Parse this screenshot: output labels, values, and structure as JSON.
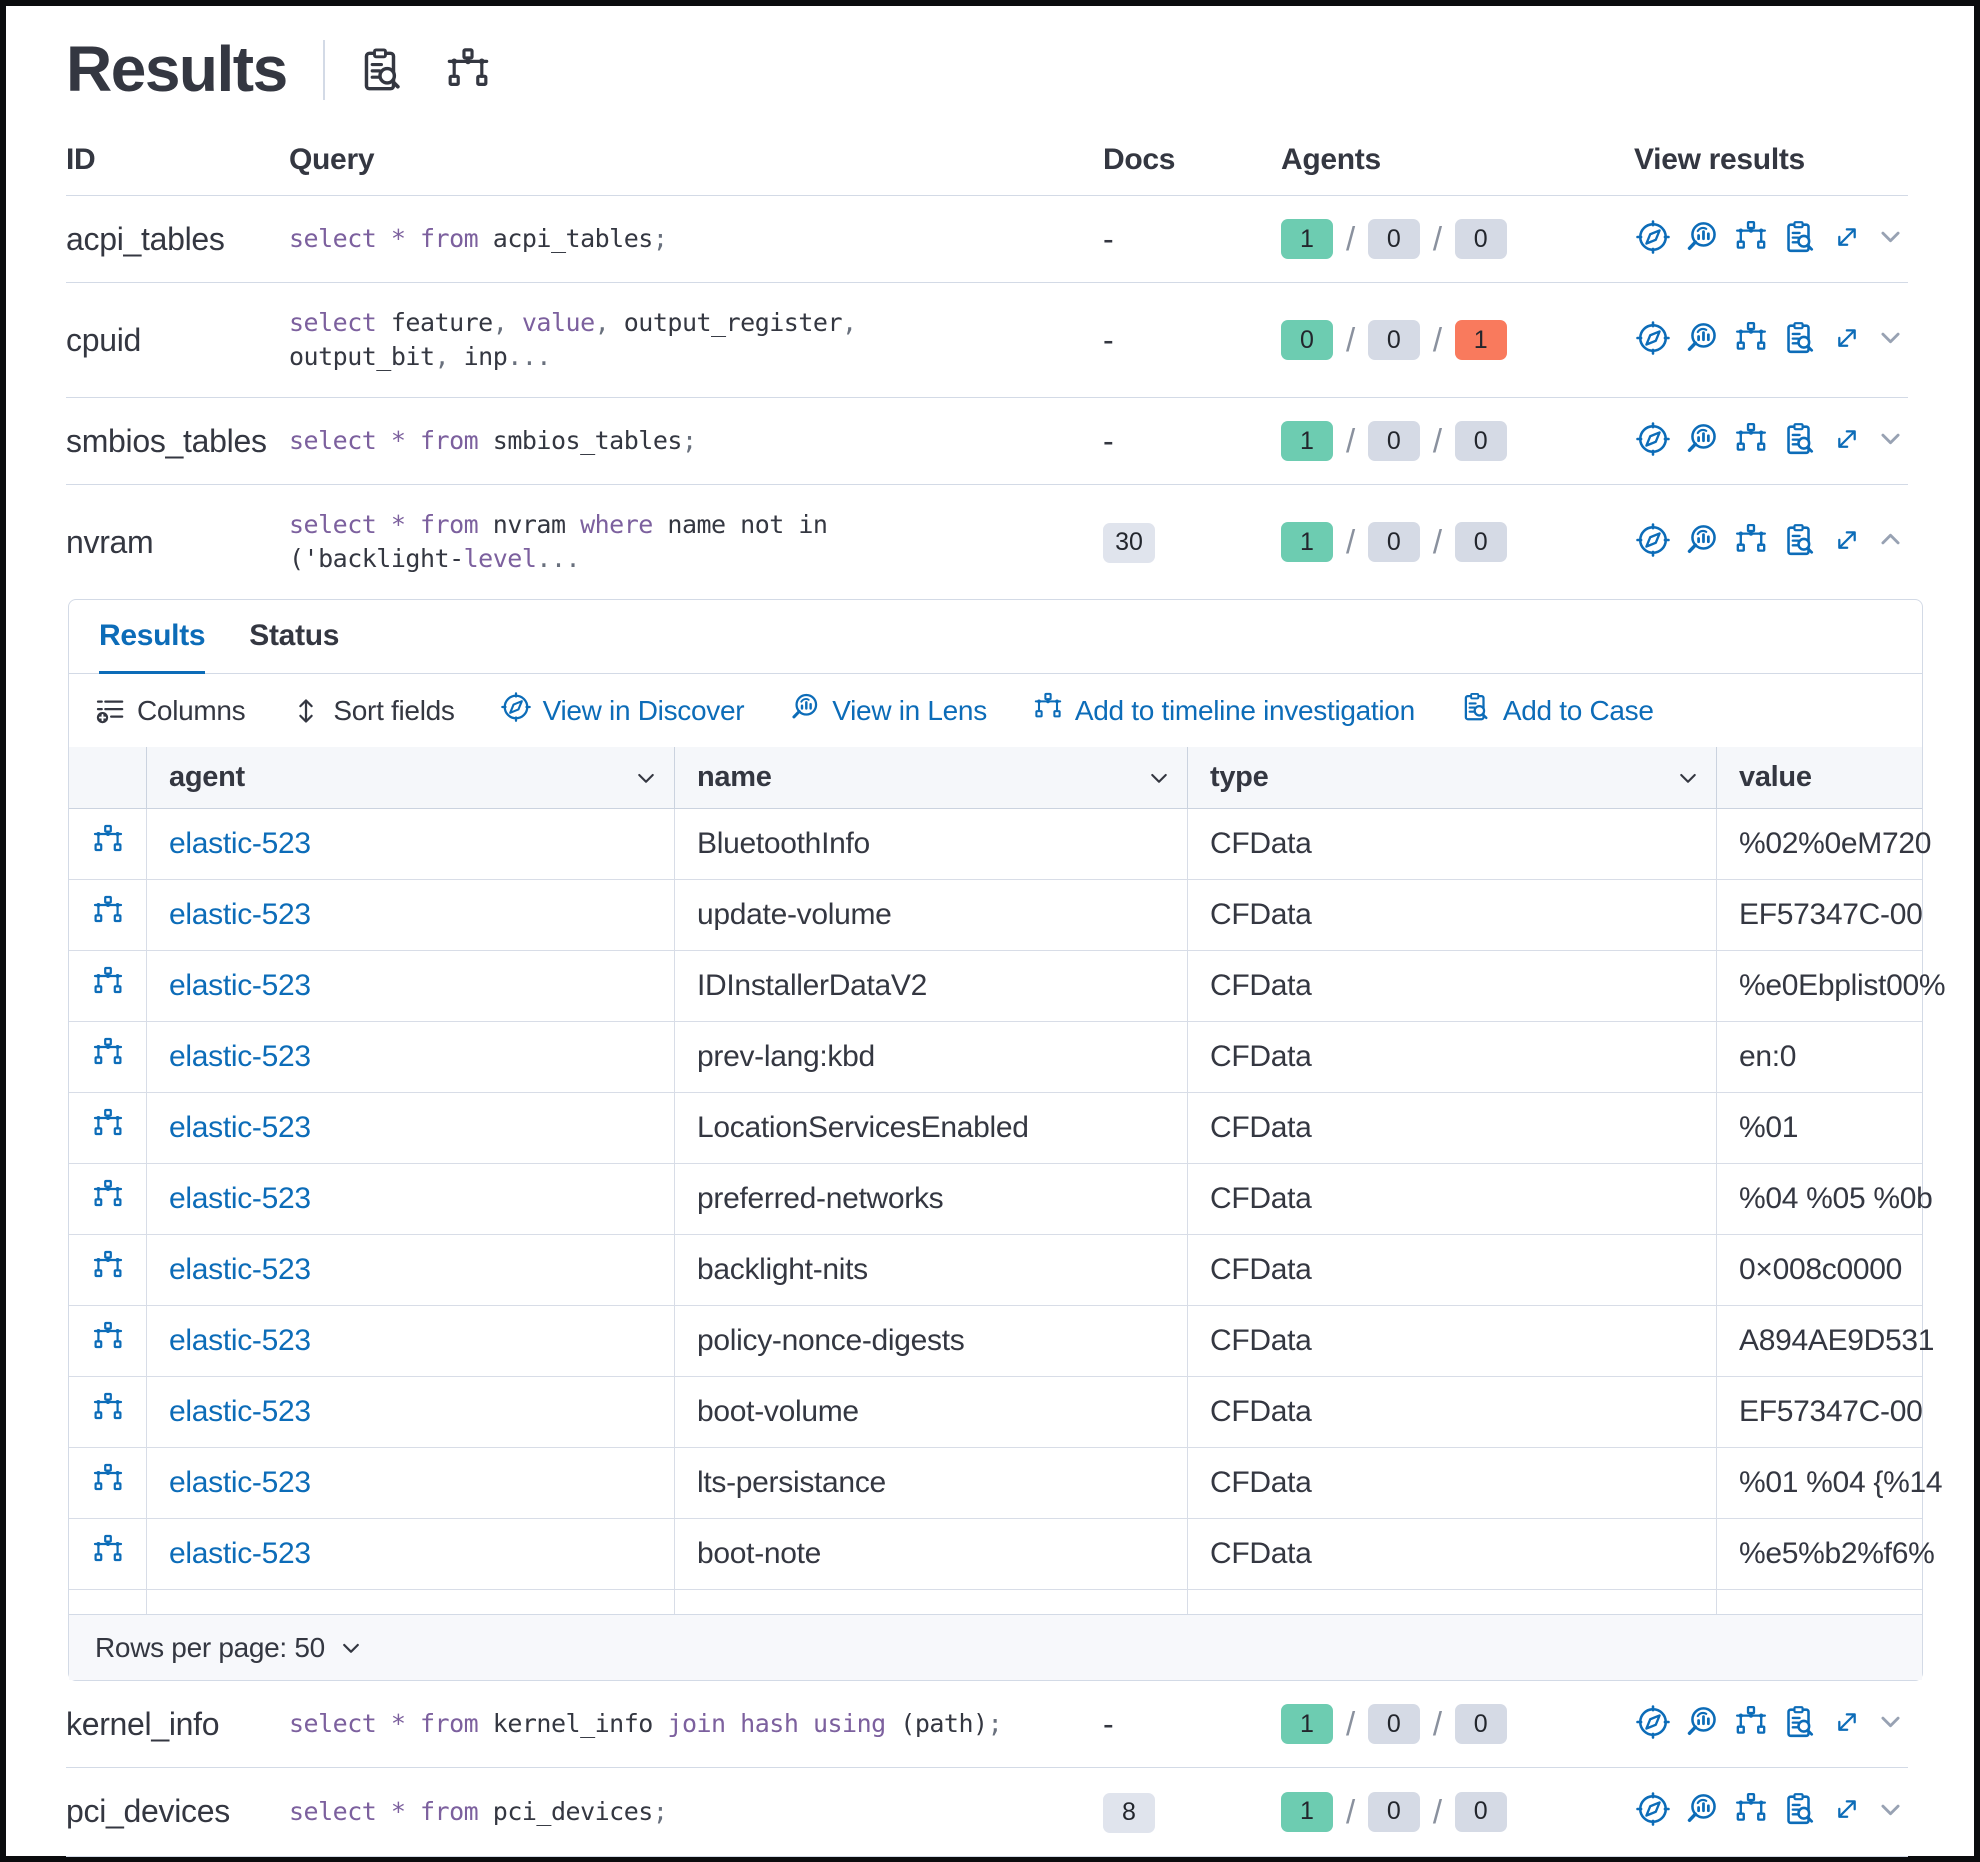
{
  "title": "Results",
  "agents_separator": "/",
  "outer_headers": {
    "id": "ID",
    "query": "Query",
    "docs": "Docs",
    "agents": "Agents",
    "view": "View results"
  },
  "queries_top": [
    {
      "id": "acpi_tables",
      "docs_dash": "-",
      "expanded": false,
      "segments": [
        {
          "t": "select",
          "c": "kw"
        },
        {
          "t": " ",
          "c": "tx"
        },
        {
          "t": "*",
          "c": "kw"
        },
        {
          "t": " ",
          "c": "tx"
        },
        {
          "t": "from",
          "c": "kw"
        },
        {
          "t": " acpi_tables",
          "c": "tx"
        },
        {
          "t": ";",
          "c": "pn"
        }
      ],
      "agents": {
        "ok": "1",
        "mid": "0",
        "last": "0"
      }
    },
    {
      "id": "cpuid",
      "docs_dash": "-",
      "expanded": false,
      "segments": [
        {
          "t": "select",
          "c": "kw"
        },
        {
          "t": " feature",
          "c": "tx"
        },
        {
          "t": ",",
          "c": "pn"
        },
        {
          "t": " ",
          "c": "tx"
        },
        {
          "t": "value",
          "c": "kw"
        },
        {
          "t": ",",
          "c": "pn"
        },
        {
          "t": " output_register",
          "c": "tx"
        },
        {
          "t": ",",
          "c": "pn"
        },
        {
          "t": "\noutput_bit",
          "c": "tx"
        },
        {
          "t": ",",
          "c": "pn"
        },
        {
          "t": " inp",
          "c": "tx"
        },
        {
          "t": "...",
          "c": "pn"
        }
      ],
      "agents": {
        "ok": "0",
        "mid": "0",
        "last": "1",
        "last_class": "badge-failed"
      }
    },
    {
      "id": "smbios_tables",
      "docs_dash": "-",
      "expanded": false,
      "segments": [
        {
          "t": "select",
          "c": "kw"
        },
        {
          "t": " ",
          "c": "tx"
        },
        {
          "t": "*",
          "c": "kw"
        },
        {
          "t": " ",
          "c": "tx"
        },
        {
          "t": "from",
          "c": "kw"
        },
        {
          "t": " smbios_tables",
          "c": "tx"
        },
        {
          "t": ";",
          "c": "pn"
        }
      ],
      "agents": {
        "ok": "1",
        "mid": "0",
        "last": "0"
      }
    },
    {
      "id": "nvram",
      "docs_badge": "30",
      "expanded": true,
      "segments": [
        {
          "t": "select",
          "c": "kw"
        },
        {
          "t": " ",
          "c": "tx"
        },
        {
          "t": "*",
          "c": "kw"
        },
        {
          "t": " ",
          "c": "tx"
        },
        {
          "t": "from",
          "c": "kw"
        },
        {
          "t": " nvram ",
          "c": "tx"
        },
        {
          "t": "where",
          "c": "kw"
        },
        {
          "t": " name not in\n('backlight-",
          "c": "tx"
        },
        {
          "t": "level",
          "c": "kw"
        },
        {
          "t": "...",
          "c": "pn"
        }
      ],
      "agents": {
        "ok": "1",
        "mid": "0",
        "last": "0"
      }
    }
  ],
  "queries_bottom": [
    {
      "id": "kernel_info",
      "docs_dash": "-",
      "expanded": false,
      "segments": [
        {
          "t": "select",
          "c": "kw"
        },
        {
          "t": " ",
          "c": "tx"
        },
        {
          "t": "*",
          "c": "kw"
        },
        {
          "t": " ",
          "c": "tx"
        },
        {
          "t": "from",
          "c": "kw"
        },
        {
          "t": " kernel_info ",
          "c": "tx"
        },
        {
          "t": "join",
          "c": "kw"
        },
        {
          "t": " ",
          "c": "tx"
        },
        {
          "t": "hash",
          "c": "kw"
        },
        {
          "t": " ",
          "c": "tx"
        },
        {
          "t": "using",
          "c": "kw"
        },
        {
          "t": " (path)",
          "c": "tx"
        },
        {
          "t": ";",
          "c": "pn"
        }
      ],
      "agents": {
        "ok": "1",
        "mid": "0",
        "last": "0"
      }
    },
    {
      "id": "pci_devices",
      "docs_badge": "8",
      "expanded": false,
      "segments": [
        {
          "t": "select",
          "c": "kw"
        },
        {
          "t": " ",
          "c": "tx"
        },
        {
          "t": "*",
          "c": "kw"
        },
        {
          "t": " ",
          "c": "tx"
        },
        {
          "t": "from",
          "c": "kw"
        },
        {
          "t": " pci_devices",
          "c": "tx"
        },
        {
          "t": ";",
          "c": "pn"
        }
      ],
      "agents": {
        "ok": "1",
        "mid": "0",
        "last": "0"
      }
    }
  ],
  "panel": {
    "tabs": {
      "results": "Results",
      "status": "Status"
    },
    "toolbar": {
      "columns": "Columns",
      "sort_fields": "Sort fields",
      "view_discover": "View in Discover",
      "view_lens": "View in Lens",
      "add_timeline": "Add to timeline investigation",
      "add_case": "Add to Case"
    },
    "grid_headers": {
      "agent": "agent",
      "name": "name",
      "type": "type",
      "value": "value"
    },
    "footer": {
      "rows_per_page": "Rows per page: 50"
    }
  },
  "result_rows": [
    {
      "agent": "elastic-523",
      "name": "BluetoothInfo",
      "type": "CFData",
      "value": "%02%0eM720"
    },
    {
      "agent": "elastic-523",
      "name": "update-volume",
      "type": "CFData",
      "value": "EF57347C-00"
    },
    {
      "agent": "elastic-523",
      "name": "IDInstallerDataV2",
      "type": "CFData",
      "value": "%e0Ebplist00%"
    },
    {
      "agent": "elastic-523",
      "name": "prev-lang:kbd",
      "type": "CFData",
      "value": "en:0"
    },
    {
      "agent": "elastic-523",
      "name": "LocationServicesEnabled",
      "type": "CFData",
      "value": "%01"
    },
    {
      "agent": "elastic-523",
      "name": "preferred-networks",
      "type": "CFData",
      "value": "%04 %05 %0b"
    },
    {
      "agent": "elastic-523",
      "name": "backlight-nits",
      "type": "CFData",
      "value": "0×008c0000"
    },
    {
      "agent": "elastic-523",
      "name": "policy-nonce-digests",
      "type": "CFData",
      "value": "A894AE9D531"
    },
    {
      "agent": "elastic-523",
      "name": "boot-volume",
      "type": "CFData",
      "value": "EF57347C-00"
    },
    {
      "agent": "elastic-523",
      "name": "lts-persistance",
      "type": "CFData",
      "value": "%01 %04 {%14"
    },
    {
      "agent": "elastic-523",
      "name": "boot-note",
      "type": "CFData",
      "value": "%e5%b2%f6%"
    }
  ]
}
